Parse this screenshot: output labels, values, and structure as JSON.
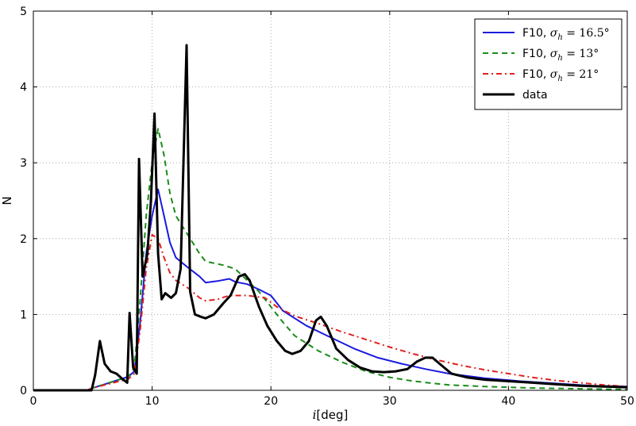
{
  "chart_data": {
    "type": "line",
    "xlabel": "i[deg]",
    "ylabel": "N",
    "xlim": [
      0,
      50
    ],
    "ylim": [
      0,
      5
    ],
    "x_ticks": [
      0,
      10,
      20,
      30,
      40,
      50
    ],
    "y_ticks": [
      0,
      1,
      2,
      3,
      4,
      5
    ],
    "x_tick_labels": [
      "0",
      "10",
      "20",
      "30",
      "40",
      "50"
    ],
    "y_tick_labels": [
      "0",
      "1",
      "2",
      "3",
      "4",
      "5"
    ],
    "grid": true,
    "legend_position": "top-right",
    "series": [
      {
        "name": "F10, σh = 16.5°",
        "legend_text": {
          "prefix": "F10, ",
          "sym": "σ",
          "sub": "h",
          "rest": " = 16.5°"
        },
        "color": "#1a1ae0",
        "style": "solid",
        "points": [
          [
            0,
            0
          ],
          [
            4.5,
            0
          ],
          [
            5,
            0.03
          ],
          [
            6,
            0.08
          ],
          [
            7,
            0.13
          ],
          [
            8,
            0.18
          ],
          [
            8.5,
            0.25
          ],
          [
            9,
            0.9
          ],
          [
            9.5,
            1.8
          ],
          [
            10,
            2.3
          ],
          [
            10.5,
            2.65
          ],
          [
            11,
            2.3
          ],
          [
            11.5,
            1.95
          ],
          [
            12,
            1.75
          ],
          [
            13,
            1.62
          ],
          [
            14,
            1.5
          ],
          [
            14.5,
            1.42
          ],
          [
            15.5,
            1.44
          ],
          [
            16.5,
            1.47
          ],
          [
            17,
            1.43
          ],
          [
            18,
            1.4
          ],
          [
            19,
            1.33
          ],
          [
            20,
            1.25
          ],
          [
            21,
            1.05
          ],
          [
            22,
            0.95
          ],
          [
            23,
            0.85
          ],
          [
            25,
            0.7
          ],
          [
            27,
            0.55
          ],
          [
            29,
            0.43
          ],
          [
            31,
            0.35
          ],
          [
            33,
            0.28
          ],
          [
            35,
            0.22
          ],
          [
            38,
            0.16
          ],
          [
            41,
            0.12
          ],
          [
            44,
            0.09
          ],
          [
            47,
            0.06
          ],
          [
            50,
            0.05
          ]
        ]
      },
      {
        "name": "F10, σh = 13°",
        "legend_text": {
          "prefix": "F10, ",
          "sym": "σ",
          "sub": "h",
          "rest": " = 13°"
        },
        "color": "#1a8c1a",
        "style": "dashed",
        "points": [
          [
            0,
            0
          ],
          [
            4.5,
            0
          ],
          [
            5,
            0.03
          ],
          [
            6,
            0.08
          ],
          [
            7,
            0.13
          ],
          [
            8,
            0.18
          ],
          [
            8.5,
            0.3
          ],
          [
            9,
            1.2
          ],
          [
            9.5,
            2.3
          ],
          [
            10,
            3.0
          ],
          [
            10.5,
            3.45
          ],
          [
            11,
            3.1
          ],
          [
            11.5,
            2.6
          ],
          [
            12,
            2.3
          ],
          [
            13,
            2.05
          ],
          [
            14,
            1.8
          ],
          [
            14.5,
            1.7
          ],
          [
            16,
            1.65
          ],
          [
            17,
            1.6
          ],
          [
            18,
            1.45
          ],
          [
            19,
            1.3
          ],
          [
            20,
            1.1
          ],
          [
            21,
            0.9
          ],
          [
            22,
            0.72
          ],
          [
            24,
            0.52
          ],
          [
            26,
            0.37
          ],
          [
            28,
            0.25
          ],
          [
            30,
            0.17
          ],
          [
            32,
            0.12
          ],
          [
            35,
            0.07
          ],
          [
            38,
            0.05
          ],
          [
            42,
            0.03
          ],
          [
            46,
            0.02
          ],
          [
            50,
            0.01
          ]
        ]
      },
      {
        "name": "F10, σh = 21°",
        "legend_text": {
          "prefix": "F10, ",
          "sym": "σ",
          "sub": "h",
          "rest": " = 21°"
        },
        "color": "#e02020",
        "style": "dashdot",
        "points": [
          [
            0,
            0
          ],
          [
            4.5,
            0
          ],
          [
            5,
            0.03
          ],
          [
            6,
            0.07
          ],
          [
            7,
            0.11
          ],
          [
            8,
            0.15
          ],
          [
            8.5,
            0.22
          ],
          [
            9,
            0.8
          ],
          [
            9.5,
            1.6
          ],
          [
            10,
            2.05
          ],
          [
            10.5,
            2.0
          ],
          [
            11,
            1.75
          ],
          [
            11.5,
            1.55
          ],
          [
            12,
            1.45
          ],
          [
            13,
            1.35
          ],
          [
            14,
            1.22
          ],
          [
            14.5,
            1.18
          ],
          [
            15.5,
            1.2
          ],
          [
            16.5,
            1.25
          ],
          [
            18,
            1.25
          ],
          [
            19.5,
            1.22
          ],
          [
            20.5,
            1.1
          ],
          [
            22,
            0.98
          ],
          [
            24,
            0.88
          ],
          [
            26,
            0.77
          ],
          [
            28,
            0.67
          ],
          [
            30,
            0.57
          ],
          [
            32,
            0.48
          ],
          [
            34,
            0.4
          ],
          [
            36,
            0.33
          ],
          [
            38,
            0.27
          ],
          [
            40,
            0.22
          ],
          [
            42,
            0.17
          ],
          [
            44,
            0.13
          ],
          [
            46,
            0.1
          ],
          [
            48,
            0.07
          ],
          [
            50,
            0.05
          ]
        ]
      },
      {
        "name": "data",
        "legend_text": {
          "prefix": "data",
          "sym": "",
          "sub": "",
          "rest": ""
        },
        "color": "#000000",
        "style": "solid-thick",
        "points": [
          [
            0,
            0
          ],
          [
            4.9,
            0
          ],
          [
            5.2,
            0.2
          ],
          [
            5.6,
            0.65
          ],
          [
            6,
            0.35
          ],
          [
            6.5,
            0.25
          ],
          [
            7,
            0.22
          ],
          [
            7.5,
            0.15
          ],
          [
            7.9,
            0.1
          ],
          [
            8.1,
            1.02
          ],
          [
            8.4,
            0.3
          ],
          [
            8.7,
            0.22
          ],
          [
            8.9,
            3.05
          ],
          [
            9.2,
            1.5
          ],
          [
            9.6,
            1.8
          ],
          [
            9.9,
            2.5
          ],
          [
            10.2,
            3.65
          ],
          [
            10.5,
            1.8
          ],
          [
            10.8,
            1.2
          ],
          [
            11.1,
            1.28
          ],
          [
            11.6,
            1.22
          ],
          [
            12,
            1.28
          ],
          [
            12.4,
            1.6
          ],
          [
            12.9,
            4.55
          ],
          [
            13.2,
            1.3
          ],
          [
            13.6,
            1.0
          ],
          [
            14.1,
            0.97
          ],
          [
            14.5,
            0.95
          ],
          [
            15.2,
            1.0
          ],
          [
            16,
            1.15
          ],
          [
            16.6,
            1.25
          ],
          [
            17.3,
            1.5
          ],
          [
            17.8,
            1.53
          ],
          [
            18.2,
            1.45
          ],
          [
            19,
            1.1
          ],
          [
            19.7,
            0.85
          ],
          [
            20.5,
            0.65
          ],
          [
            21.2,
            0.52
          ],
          [
            21.8,
            0.48
          ],
          [
            22.5,
            0.52
          ],
          [
            23.2,
            0.65
          ],
          [
            23.8,
            0.92
          ],
          [
            24.2,
            0.97
          ],
          [
            24.7,
            0.85
          ],
          [
            25.5,
            0.55
          ],
          [
            26.5,
            0.4
          ],
          [
            27.5,
            0.3
          ],
          [
            28.5,
            0.25
          ],
          [
            29.5,
            0.24
          ],
          [
            30.5,
            0.25
          ],
          [
            31.5,
            0.28
          ],
          [
            32.3,
            0.38
          ],
          [
            33,
            0.43
          ],
          [
            33.6,
            0.43
          ],
          [
            34.2,
            0.35
          ],
          [
            35.2,
            0.22
          ],
          [
            36.5,
            0.17
          ],
          [
            38,
            0.14
          ],
          [
            40,
            0.12
          ],
          [
            42,
            0.1
          ],
          [
            44,
            0.08
          ],
          [
            46,
            0.06
          ],
          [
            48,
            0.05
          ],
          [
            50,
            0.04
          ]
        ]
      }
    ]
  }
}
